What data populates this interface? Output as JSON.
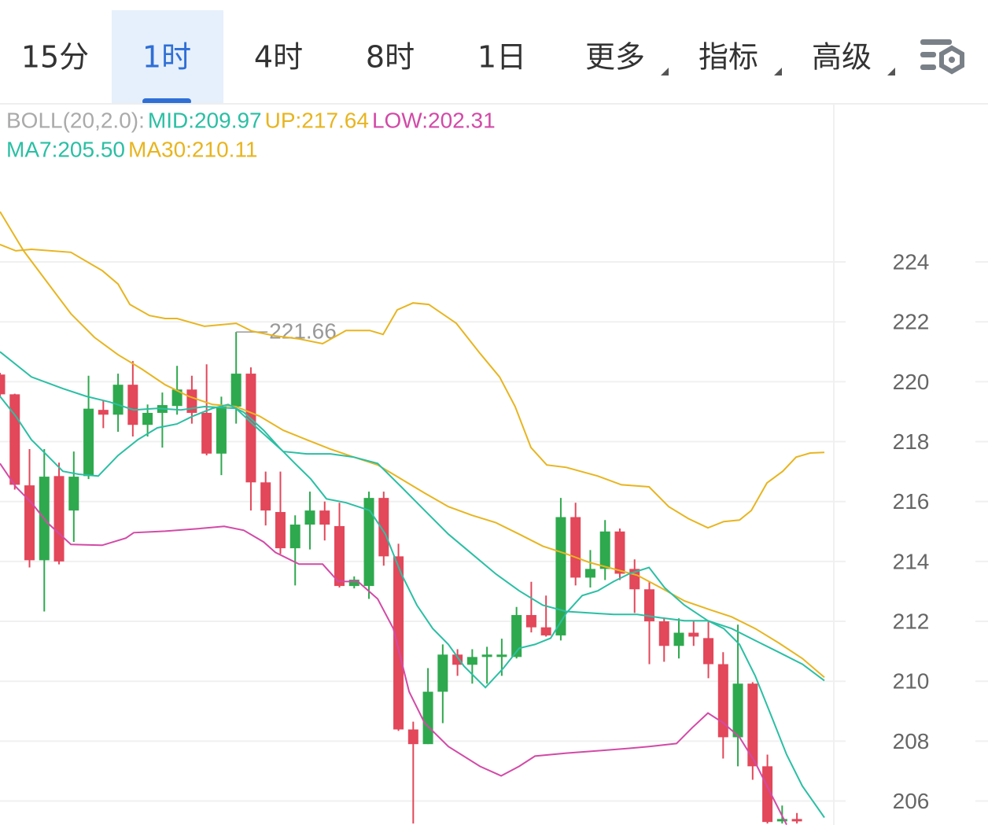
{
  "tabs": {
    "items": [
      "15分",
      "1时",
      "4时",
      "8时",
      "1日",
      "更多",
      "指标",
      "高级"
    ],
    "selected": 1,
    "dropdown": [
      5,
      6,
      7
    ]
  },
  "chart_data": {
    "type": "candlestick",
    "indicators": [
      {
        "text": "BOLL(20,2.0):",
        "color": "#aaaaaa",
        "row": 0
      },
      {
        "text": "MID:209.97",
        "color": "#2bbfa4",
        "row": 0
      },
      {
        "text": "UP:217.64",
        "color": "#e8b520",
        "row": 0
      },
      {
        "text": "LOW:202.31",
        "color": "#d24aa7",
        "row": 0
      },
      {
        "text": "MA7:205.50",
        "color": "#2bbfa4",
        "row": 1
      },
      {
        "text": "MA30:210.11",
        "color": "#e8b520",
        "row": 1
      }
    ],
    "ylim": [
      205.2,
      229.2
    ],
    "yticks": [
      206,
      208,
      210,
      212,
      214,
      216,
      218,
      220,
      222,
      224
    ],
    "xlim": [
      0,
      56.5
    ],
    "grid": true,
    "up_color": "#2ea94e",
    "down_color": "#e3475a",
    "max_marker": 221.66,
    "candles": {
      "x": [
        0,
        1,
        2,
        3,
        4,
        5,
        6,
        7,
        8,
        9,
        10,
        11,
        12,
        13,
        14,
        15,
        16,
        17,
        18,
        19,
        20,
        21,
        22,
        23,
        24,
        25,
        26,
        27,
        28,
        29,
        30,
        31,
        32,
        33,
        34,
        35,
        36,
        37,
        38,
        39,
        40,
        41,
        42,
        43,
        44,
        45,
        46,
        47,
        48,
        49,
        50,
        51,
        52,
        53,
        54
      ],
      "open": [
        220.24,
        219.58,
        216.54,
        214.04,
        216.85,
        215.7,
        216.85,
        219.06,
        218.9,
        219.9,
        218.56,
        218.96,
        219.19,
        219.74,
        218.96,
        217.6,
        219.17,
        220.27,
        216.64,
        215.65,
        214.44,
        215.23,
        215.7,
        215.18,
        213.18,
        213.18,
        216.12,
        214.17,
        208.39,
        207.9,
        209.65,
        210.89,
        210.55,
        210.81,
        210.81,
        210.81,
        212.21,
        211.8,
        211.53,
        215.48,
        213.46,
        213.75,
        215.0,
        213.75,
        213.07,
        212.0,
        211.18,
        211.62,
        211.44,
        210.57,
        208.13,
        209.92,
        207.16,
        205.35,
        205.4
      ],
      "high": [
        220.3,
        219.6,
        217.75,
        217.75,
        217.3,
        217.67,
        220.2,
        219.38,
        220.27,
        220.69,
        219.24,
        219.64,
        220.53,
        220.2,
        220.58,
        219.5,
        221.66,
        220.48,
        217.0,
        217.0,
        215.54,
        216.33,
        216.0,
        215.96,
        213.5,
        216.33,
        216.33,
        214.59,
        208.65,
        210.44,
        211.23,
        211.07,
        211.07,
        211.15,
        211.42,
        212.48,
        213.32,
        212.86,
        216.12,
        215.96,
        214.38,
        215.38,
        215.1,
        214.07,
        213.33,
        212.1,
        212.1,
        212.0,
        212.0,
        210.97,
        211.89,
        209.97,
        207.55,
        205.85,
        205.6
      ],
      "low": [
        219.5,
        216.4,
        213.8,
        212.33,
        213.9,
        214.65,
        216.75,
        218.45,
        218.33,
        218.17,
        218.17,
        217.8,
        218.9,
        218.6,
        217.54,
        216.88,
        218.6,
        215.7,
        215.2,
        214.25,
        213.2,
        214.4,
        214.7,
        213.13,
        213.1,
        212.75,
        213.86,
        208.34,
        205.25,
        207.9,
        208.6,
        210.18,
        209.92,
        209.92,
        210.18,
        210.76,
        211.63,
        211.49,
        211.36,
        213.2,
        213.13,
        213.38,
        213.38,
        212.28,
        210.57,
        210.65,
        210.76,
        211.18,
        210.1,
        207.42,
        207.16,
        206.71,
        205.25,
        205.25,
        205.25
      ],
      "close": [
        219.58,
        216.56,
        214.04,
        216.83,
        214.0,
        216.83,
        219.1,
        218.9,
        219.9,
        218.56,
        218.96,
        219.22,
        219.74,
        218.96,
        217.6,
        219.17,
        220.27,
        216.64,
        215.7,
        214.44,
        215.23,
        215.7,
        215.23,
        213.18,
        213.39,
        216.12,
        214.17,
        208.39,
        207.9,
        209.65,
        210.89,
        210.55,
        210.81,
        210.89,
        210.89,
        212.21,
        211.8,
        211.53,
        215.48,
        213.46,
        213.75,
        215.0,
        213.59,
        213.07,
        212.0,
        211.18,
        211.62,
        211.49,
        210.57,
        208.13,
        209.92,
        207.16,
        205.3,
        205.4,
        205.35
      ]
    },
    "series": [
      {
        "name": "UP",
        "color": "#e8b520",
        "x": [
          0,
          1.07,
          2.13,
          4.8,
          6.93,
          8.0,
          8.8,
          10.13,
          11.19,
          12.0,
          13.86,
          16.0,
          17.06,
          18.66,
          20.26,
          21.86,
          23.45,
          25.05,
          25.96,
          26.92,
          27.99,
          29.05,
          30.92,
          32.52,
          33.85,
          34.91,
          35.98,
          37.05,
          38.38,
          40.51,
          42.11,
          43.98,
          45.31,
          46.64,
          47.97,
          49.04,
          50.11,
          50.91,
          51.97,
          53.04,
          53.94,
          54.9,
          55.86
        ],
        "values": [
          224.58,
          224.37,
          224.42,
          224.32,
          223.71,
          223.26,
          222.58,
          222.21,
          222.11,
          222.11,
          221.85,
          221.95,
          221.69,
          221.53,
          221.43,
          221.27,
          221.71,
          221.71,
          221.58,
          222.4,
          222.63,
          222.58,
          221.95,
          220.95,
          220.16,
          219.17,
          217.8,
          217.22,
          217.14,
          216.85,
          216.56,
          216.49,
          215.83,
          215.43,
          215.12,
          215.33,
          215.38,
          215.7,
          216.62,
          217.01,
          217.48,
          217.62,
          217.64
        ]
      },
      {
        "name": "MA30",
        "color": "#e8b520",
        "x": [
          0,
          1.6,
          3.2,
          4.8,
          6.4,
          8.0,
          9.59,
          11.19,
          12.79,
          14.39,
          15.99,
          17.59,
          19.19,
          20.79,
          22.39,
          23.99,
          25.59,
          27.19,
          28.78,
          30.38,
          31.98,
          33.58,
          35.18,
          36.78,
          38.38,
          39.98,
          41.58,
          43.18,
          44.78,
          46.38,
          47.97,
          49.57,
          51.17,
          52.77,
          54.37,
          55.86
        ],
        "values": [
          225.68,
          224.37,
          223.32,
          222.27,
          221.48,
          220.9,
          220.43,
          219.9,
          219.51,
          219.24,
          219.17,
          218.85,
          218.38,
          218.06,
          217.75,
          217.48,
          217.22,
          216.75,
          216.28,
          215.83,
          215.54,
          215.3,
          214.91,
          214.51,
          214.25,
          213.96,
          213.75,
          213.54,
          213.12,
          212.68,
          212.41,
          212.15,
          211.76,
          211.28,
          210.76,
          210.13
        ]
      },
      {
        "name": "MID",
        "color": "#2bbfa4",
        "x": [
          0,
          2.13,
          4.26,
          5.86,
          7.46,
          9.06,
          10.66,
          12.26,
          13.86,
          15.99,
          17.59,
          19.19,
          20.79,
          22.39,
          23.99,
          25.59,
          27.19,
          28.78,
          30.38,
          31.98,
          33.58,
          35.18,
          36.78,
          38.38,
          39.98,
          41.58,
          43.18,
          44.78,
          46.38,
          47.97,
          49.57,
          51.17,
          52.77,
          54.37,
          55.86
        ],
        "values": [
          221.0,
          220.16,
          219.77,
          219.51,
          219.32,
          219.06,
          219.11,
          219.06,
          219.17,
          219.11,
          218.38,
          217.67,
          217.59,
          217.59,
          217.48,
          217.27,
          216.49,
          215.7,
          214.91,
          214.25,
          213.59,
          213.02,
          212.54,
          212.33,
          212.28,
          212.23,
          212.23,
          212.12,
          212.02,
          212.02,
          211.76,
          211.36,
          210.97,
          210.57,
          210.02
        ]
      },
      {
        "name": "MA7",
        "color": "#2bbfa4",
        "x": [
          0,
          1.07,
          2.13,
          3.2,
          4.26,
          5.33,
          6.66,
          8.0,
          9.33,
          10.66,
          11.99,
          13.06,
          14.39,
          15.46,
          16.52,
          17.86,
          18.92,
          19.99,
          21.06,
          22.12,
          23.45,
          25.05,
          26.12,
          27.19,
          28.25,
          29.32,
          30.38,
          31.45,
          32.89,
          34.12,
          35.18,
          36.25,
          37.31,
          38.38,
          39.45,
          40.51,
          41.58,
          42.64,
          43.98,
          45.04,
          46.38,
          47.97,
          49.04,
          50.11,
          51.17,
          52.24,
          53.3,
          54.37,
          55.86
        ],
        "values": [
          219.51,
          218.85,
          218.06,
          217.54,
          217.01,
          216.91,
          216.85,
          217.54,
          218.06,
          218.46,
          218.59,
          218.85,
          219.11,
          219.24,
          218.98,
          218.38,
          217.8,
          217.27,
          216.75,
          216.09,
          215.96,
          215.7,
          214.91,
          213.59,
          212.54,
          211.76,
          211.23,
          210.5,
          209.79,
          210.44,
          211.1,
          211.23,
          211.44,
          212.28,
          212.86,
          213.02,
          213.33,
          213.59,
          213.8,
          213.12,
          212.54,
          212.02,
          211.76,
          211.23,
          210.18,
          208.87,
          207.55,
          206.5,
          205.45
        ]
      },
      {
        "name": "LOW",
        "color": "#d24aa7",
        "x": [
          0,
          1.07,
          2.13,
          3.2,
          4.8,
          6.93,
          8.53,
          9.06,
          11.19,
          13.33,
          15.19,
          16.52,
          17.86,
          18.66,
          20.26,
          21.86,
          22.92,
          24.25,
          25.59,
          26.65,
          27.72,
          28.78,
          30.38,
          32.52,
          33.96,
          35.18,
          36.25,
          38.38,
          40.51,
          42.64,
          43.98,
          45.84,
          46.91,
          47.97,
          49.04,
          50.11,
          51.17,
          52.24,
          53.3
        ],
        "values": [
          217.27,
          216.49,
          215.96,
          215.3,
          214.57,
          214.54,
          214.78,
          214.96,
          215.01,
          215.09,
          215.17,
          215.04,
          214.65,
          214.3,
          213.91,
          213.91,
          213.33,
          213.33,
          212.75,
          211.76,
          209.65,
          208.6,
          207.82,
          207.16,
          206.84,
          207.16,
          207.5,
          207.6,
          207.68,
          207.76,
          207.82,
          207.92,
          208.45,
          208.94,
          208.6,
          208.13,
          207.29,
          206.24,
          205.21
        ]
      }
    ]
  }
}
